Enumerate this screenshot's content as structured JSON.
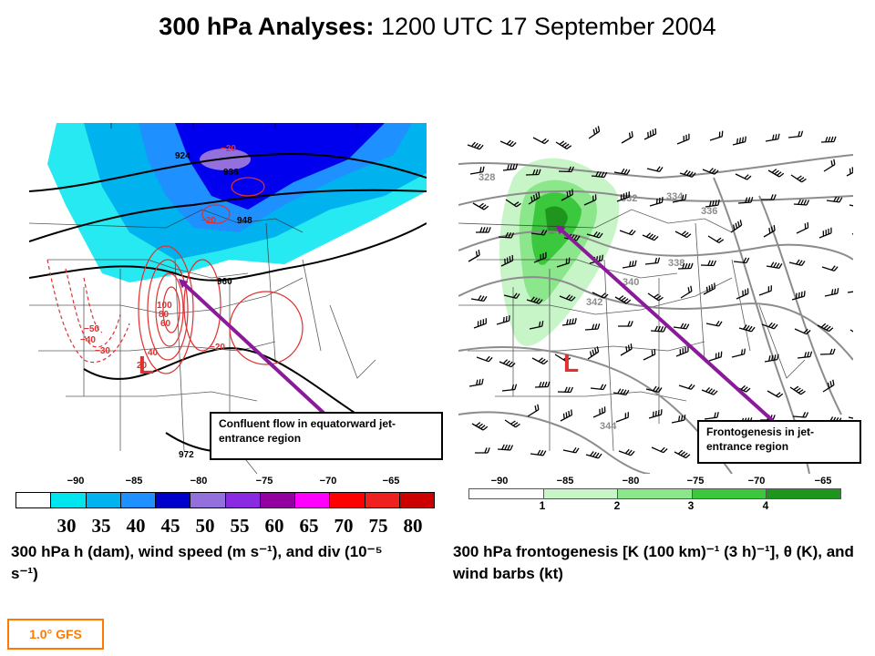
{
  "title": {
    "main": "300 hPa Analyses:",
    "datetime": "1200 UTC 17 September 2004"
  },
  "left_panel": {
    "callout": "Confluent flow in equatorward jet-entrance region",
    "caption": "300 hPa h (dam), wind speed (m s⁻¹), and div (10⁻⁵ s⁻¹)",
    "low_marker": "L",
    "lon_labels": [
      "−90",
      "−85",
      "−80",
      "−75",
      "−70",
      "−65"
    ],
    "height_labels": [
      "924",
      "936",
      "948",
      "960",
      "972"
    ],
    "div_labels": [
      "−20",
      "−20",
      "−20",
      "100",
      "80",
      "60",
      "40",
      "20",
      "−50",
      "−40",
      "−30"
    ],
    "colorbar": {
      "labels": [
        "30",
        "35",
        "40",
        "45",
        "50",
        "55",
        "60",
        "65",
        "70",
        "75",
        "80"
      ],
      "colors": [
        "#ffffff",
        "#00e5ee",
        "#00b2ee",
        "#1e90ff",
        "#0000cd",
        "#9370db",
        "#8a2be2",
        "#9400a0",
        "#ff00ff",
        "#ff0000",
        "#ee2020",
        "#cd0000"
      ]
    }
  },
  "right_panel": {
    "callout": "Frontogenesis in jet-entrance region",
    "caption": "300 hPa frontogenesis [K (100 km)⁻¹ (3 h)⁻¹], θ (K), and wind barbs (kt)",
    "low_marker": "L",
    "lon_labels": [
      "−90",
      "−85",
      "−80",
      "−75",
      "−70",
      "−65"
    ],
    "theta_labels": [
      "328",
      "332",
      "334",
      "336",
      "338",
      "340",
      "342",
      "344",
      "344"
    ],
    "colorbar": {
      "labels": [
        "1",
        "2",
        "3",
        "4"
      ],
      "colors": [
        "#ffffff",
        "#c8f5c8",
        "#8ce68c",
        "#3cc83c",
        "#1e961e"
      ]
    }
  },
  "model_label": "1.0° GFS",
  "colors": {
    "arrow": "#8b1a9b",
    "badge": "#ff7a00",
    "divergence": "#e03030",
    "height_contour": "#000000",
    "theta_contour": "#8c8c8c"
  }
}
